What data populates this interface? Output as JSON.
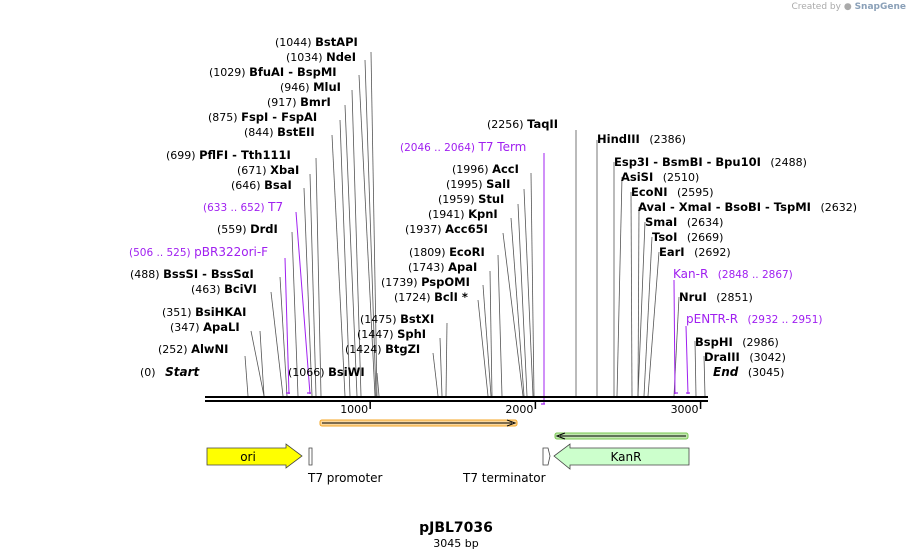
{
  "credit": {
    "prefix": "Created by",
    "brand": "SnapGene"
  },
  "plasmid": {
    "name": "pJBL7036",
    "size_label": "3045 bp",
    "length": 3045
  },
  "ruler": {
    "ticks": [
      {
        "value": 1000,
        "label": "1000"
      },
      {
        "value": 2000,
        "label": "2000"
      },
      {
        "value": 3000,
        "label": "3000"
      }
    ]
  },
  "endpoints": {
    "start": {
      "pos": "(0)",
      "label": "Start"
    },
    "end": {
      "pos": "(3045)",
      "label": "End"
    }
  },
  "sites_left": [
    {
      "pos": "(1044)",
      "names": "BstAPI"
    },
    {
      "pos": "(1034)",
      "names": "NdeI"
    },
    {
      "pos": "(1029)",
      "names": "BfuAI  - BspMI"
    },
    {
      "pos": "(946)",
      "names": "MluI"
    },
    {
      "pos": "(917)",
      "names": "BmrI"
    },
    {
      "pos": "(875)",
      "names": "FspI  - FspAI"
    },
    {
      "pos": "(844)",
      "names": "BstEII"
    },
    {
      "pos": "(699)",
      "names": "PflFI  - Tth111I"
    },
    {
      "pos": "(671)",
      "names": "XbaI"
    },
    {
      "pos": "(646)",
      "names": "BsaI"
    },
    {
      "pos": "(559)",
      "names": "DrdI"
    },
    {
      "pos": "(488)",
      "names": "BssSI  - BssSαI"
    },
    {
      "pos": "(463)",
      "names": "BciVI"
    },
    {
      "pos": "(351)",
      "names": "BsiHKAI"
    },
    {
      "pos": "(347)",
      "names": "ApaLI"
    },
    {
      "pos": "(252)",
      "names": "AlwNI"
    }
  ],
  "sites_mid": [
    {
      "pos": "(2256)",
      "names": "TaqII"
    },
    {
      "pos": "(1996)",
      "names": "AccI"
    },
    {
      "pos": "(1995)",
      "names": "SalI"
    },
    {
      "pos": "(1959)",
      "names": "StuI"
    },
    {
      "pos": "(1941)",
      "names": "KpnI"
    },
    {
      "pos": "(1937)",
      "names": "Acc65I"
    },
    {
      "pos": "(1809)",
      "names": "EcoRI"
    },
    {
      "pos": "(1743)",
      "names": "ApaI"
    },
    {
      "pos": "(1739)",
      "names": "PspOMI"
    },
    {
      "pos": "(1724)",
      "names": "BclI *"
    },
    {
      "pos": "(1475)",
      "names": "BstXI"
    },
    {
      "pos": "(1447)",
      "names": "SphI"
    },
    {
      "pos": "(1424)",
      "names": "BtgZI"
    },
    {
      "pos": "(1066)",
      "names": "BsiWI"
    }
  ],
  "sites_right": [
    {
      "names": "HindIII",
      "pos": "(2386)"
    },
    {
      "names": "Esp3I  - BsmBI  - Bpu10I",
      "pos": "(2488)"
    },
    {
      "names": "AsiSI",
      "pos": "(2510)"
    },
    {
      "names": "EcoNI",
      "pos": "(2595)"
    },
    {
      "names": "AvaI  - XmaI  - BsoBI  - TspMI",
      "pos": "(2632)"
    },
    {
      "names": "SmaI",
      "pos": "(2634)"
    },
    {
      "names": "TsoI",
      "pos": "(2669)"
    },
    {
      "names": "EarI",
      "pos": "(2692)"
    },
    {
      "names": "NruI",
      "pos": "(2851)"
    },
    {
      "names": "BspHI",
      "pos": "(2986)"
    },
    {
      "names": "DraIII",
      "pos": "(3042)"
    }
  ],
  "primer_labels": {
    "t7term": {
      "range": "(2046 .. 2064)",
      "name": "T7 Term"
    },
    "t7": {
      "range": "(633 .. 652)",
      "name": "T7"
    },
    "pbr": {
      "range": "(506 .. 525)",
      "name": "pBR322ori-F"
    },
    "kanr": {
      "name": "Kan-R",
      "range": "(2848 .. 2867)"
    },
    "pentr": {
      "name": "pENTR-R",
      "range": "(2932 .. 2951)"
    }
  },
  "features": {
    "ori": "ori",
    "kanr": "KanR",
    "t7_promoter": "T7 promoter",
    "t7_terminator": "T7 terminator"
  },
  "colors": {
    "ori_fill": "#ffff00",
    "kanr_fill": "#ccffcc",
    "primer": "#a020f0",
    "orf1": "#f5a623",
    "orf2": "#78c850"
  }
}
